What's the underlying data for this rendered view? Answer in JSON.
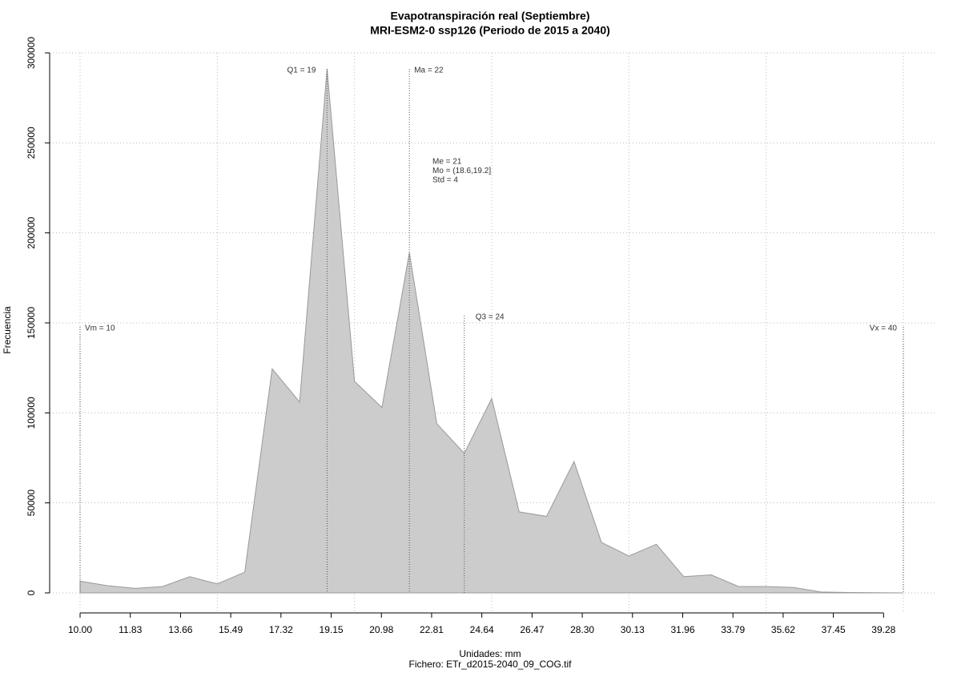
{
  "chart_data": {
    "type": "area",
    "title": "Evapotranspiración real (Septiembre)",
    "subtitle": "MRI-ESM2-0 ssp126 (Periodo de 2015 a 2040)",
    "xlabel": "Unidades: mm",
    "caption": "Fichero: ETr_d2015-2040_09_COG.tif",
    "ylabel": "Frecuencia",
    "x": [
      10,
      11,
      12,
      13,
      14,
      15,
      16,
      17,
      18,
      19,
      20,
      21,
      22,
      23,
      24,
      25,
      26,
      27,
      28,
      29,
      30,
      31,
      32,
      33,
      34,
      35,
      36,
      37,
      38,
      39,
      40
    ],
    "values": [
      6500,
      4000,
      2500,
      3500,
      9000,
      5000,
      11500,
      124500,
      106000,
      291000,
      117500,
      103000,
      189000,
      94000,
      77500,
      108000,
      45000,
      42500,
      73000,
      28000,
      20500,
      27000,
      9000,
      10000,
      3500,
      3500,
      3000,
      500,
      200,
      100,
      0
    ],
    "color": "#cccccc",
    "xlim": [
      10,
      40
    ],
    "ylim": [
      0,
      300000
    ],
    "xticks": [
      {
        "value": 10,
        "label": "10.00"
      },
      11.83,
      13.66,
      15.49,
      17.32,
      19.15,
      20.98,
      22.81,
      24.64,
      26.47,
      {
        "value": 28.3,
        "label": "28.30"
      },
      30.13,
      31.96,
      33.79,
      35.62,
      37.45,
      39.28
    ],
    "yticks": [
      0,
      50000,
      100000,
      150000,
      200000,
      250000,
      300000
    ],
    "xgrid": [
      10,
      15,
      20,
      25,
      30,
      35,
      40
    ],
    "grid": true,
    "annotations": [
      {
        "label": "Vm = 10",
        "x": 10
      },
      {
        "label": "Q1 = 19",
        "x": 19
      },
      {
        "label": "Ma = 22",
        "x": 22
      },
      {
        "label": "Q3 = 24",
        "x": 24
      },
      {
        "label": "Vx = 40",
        "x": 40
      }
    ],
    "stats": [
      "Me = 21",
      "Mo = (18.6,19.2]",
      "Std = 4"
    ]
  }
}
